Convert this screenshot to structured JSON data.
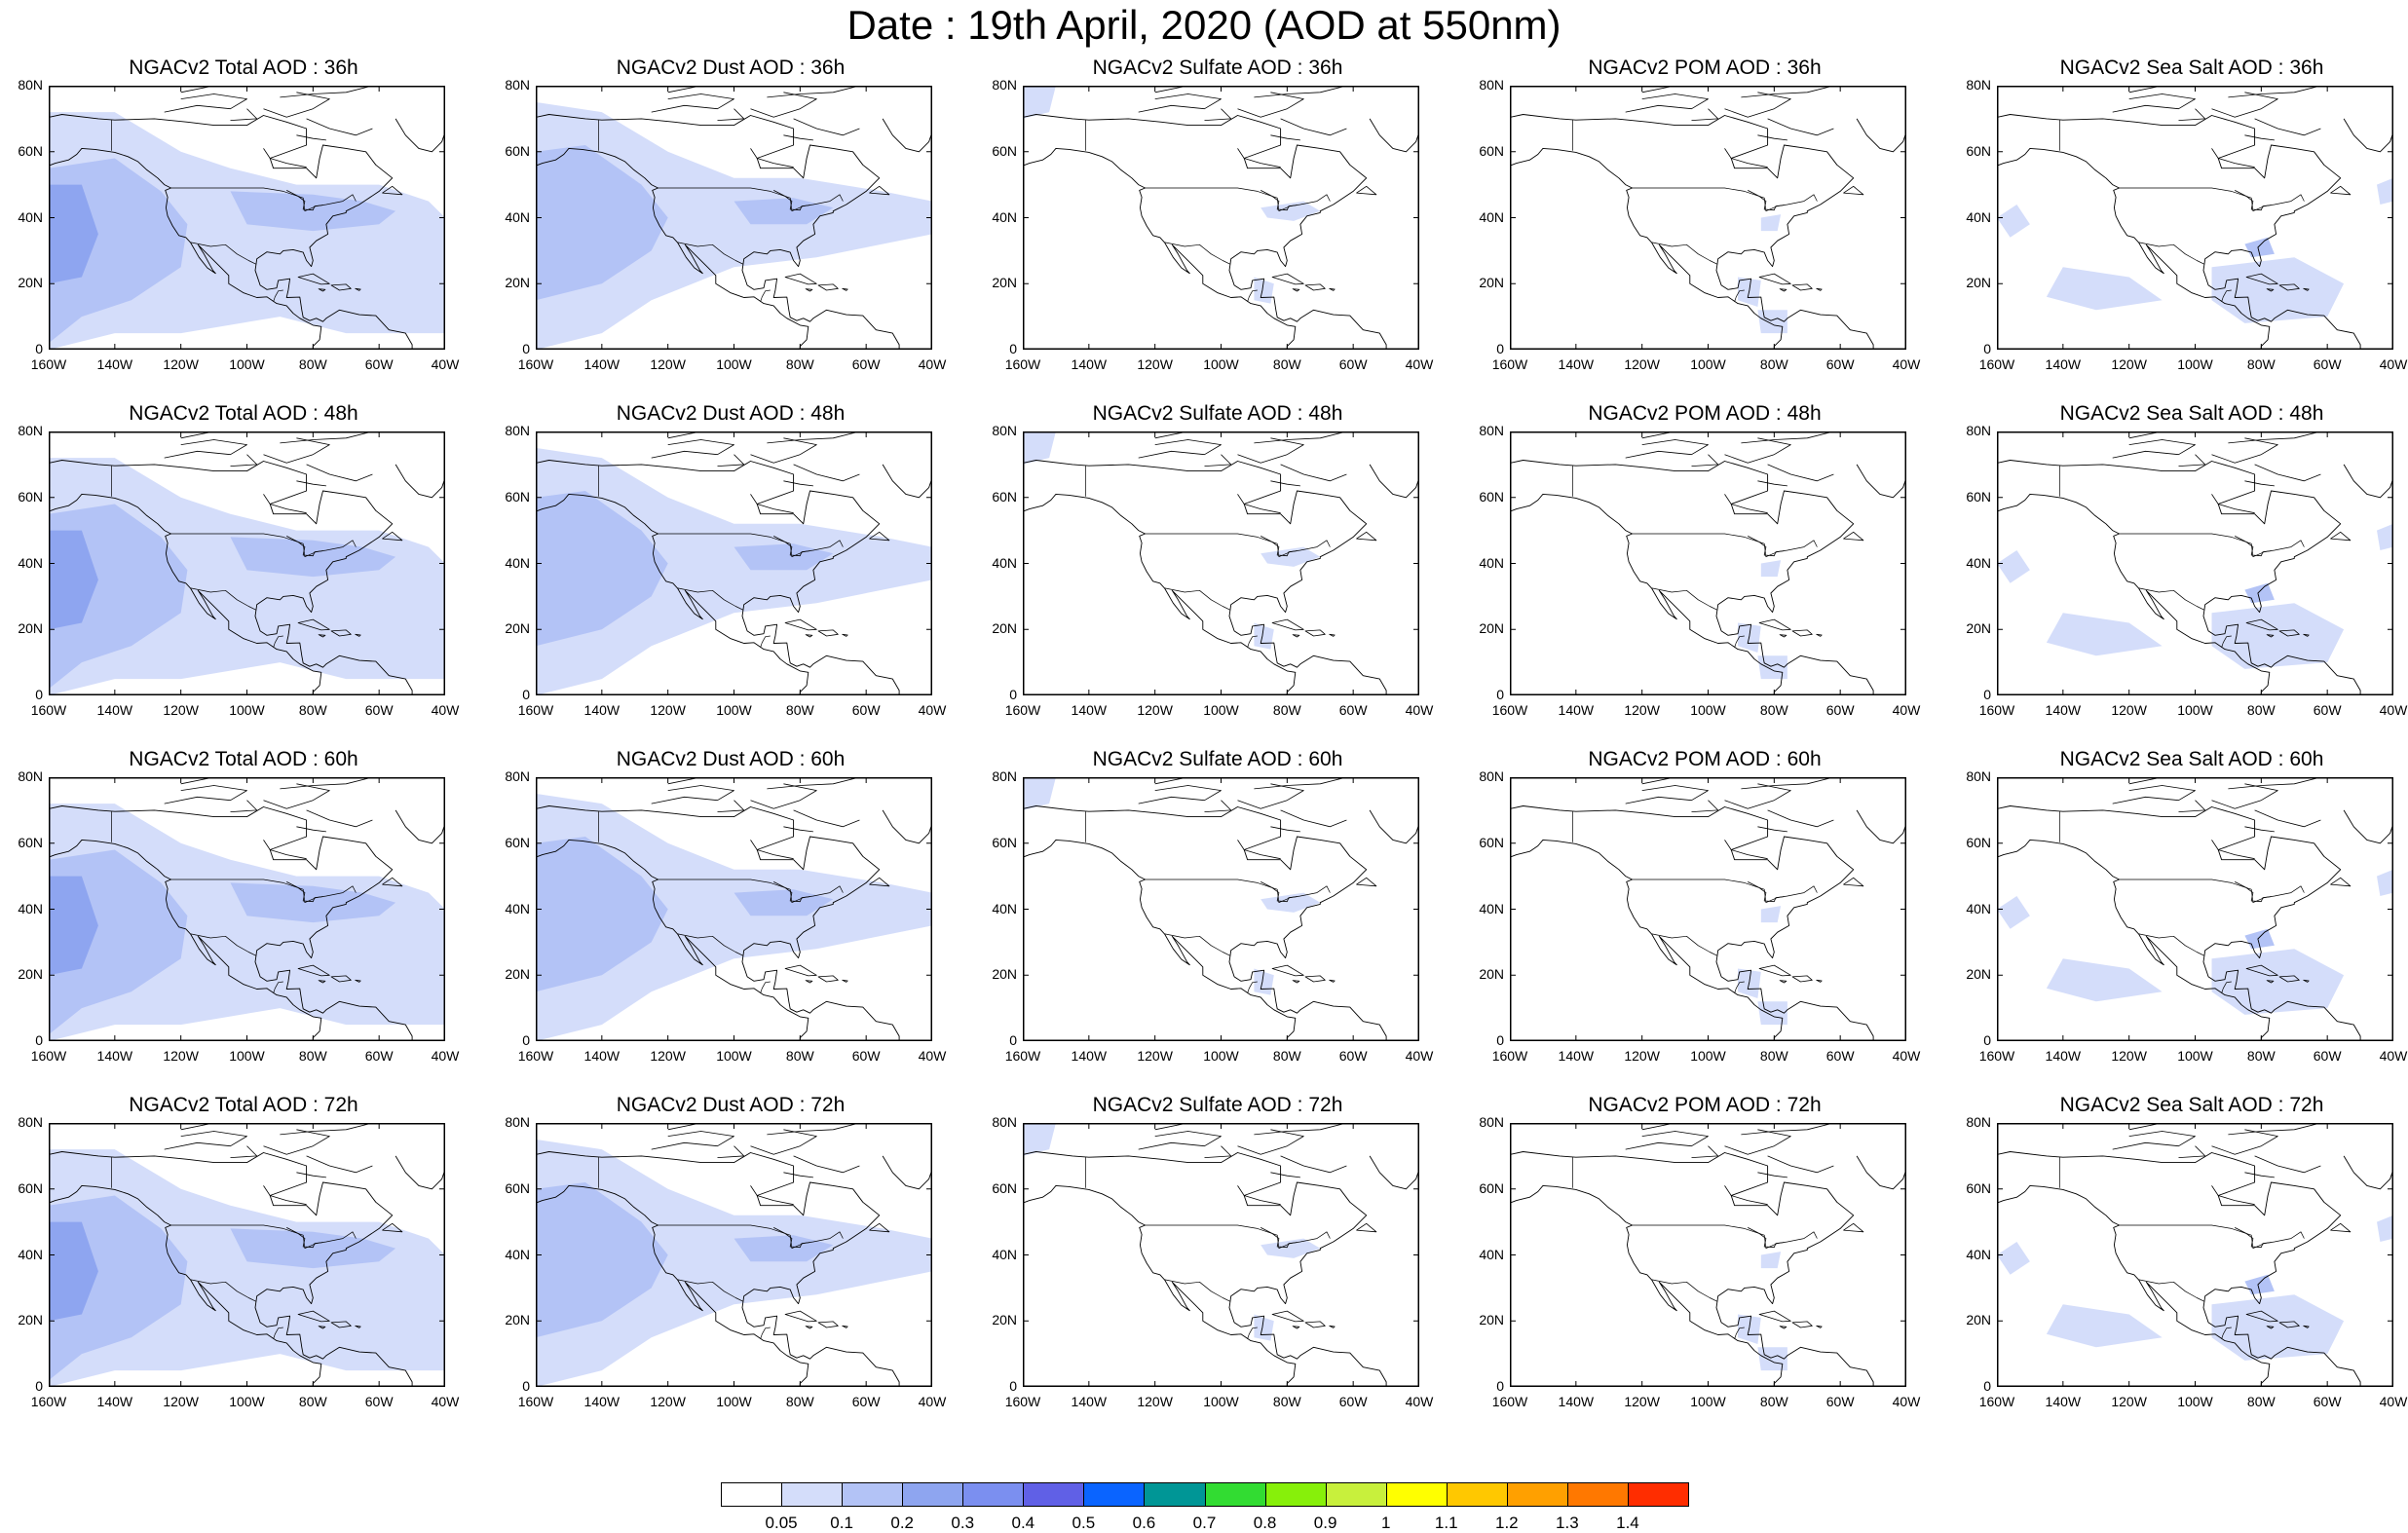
{
  "title": "Date : 19th April, 2020 (AOD at 550nm)",
  "lat_labels": [
    "80N",
    "60N",
    "40N",
    "20N",
    "0"
  ],
  "lon_labels": [
    "160W",
    "140W",
    "120W",
    "100W",
    "80W",
    "60W",
    "40W"
  ],
  "panels": [
    {
      "title": "NGACv2 Total AOD : 36h",
      "field": "total",
      "lead": 36
    },
    {
      "title": "NGACv2 Dust AOD : 36h",
      "field": "dust",
      "lead": 36
    },
    {
      "title": "NGACv2 Sulfate AOD : 36h",
      "field": "sulfate",
      "lead": 36
    },
    {
      "title": "NGACv2 POM AOD : 36h",
      "field": "pom",
      "lead": 36
    },
    {
      "title": "NGACv2 Sea Salt AOD : 36h",
      "field": "seasalt",
      "lead": 36
    },
    {
      "title": "NGACv2 Total AOD : 48h",
      "field": "total",
      "lead": 48
    },
    {
      "title": "NGACv2 Dust AOD : 48h",
      "field": "dust",
      "lead": 48
    },
    {
      "title": "NGACv2 Sulfate AOD : 48h",
      "field": "sulfate",
      "lead": 48
    },
    {
      "title": "NGACv2 POM AOD : 48h",
      "field": "pom",
      "lead": 48
    },
    {
      "title": "NGACv2 Sea Salt AOD : 48h",
      "field": "seasalt",
      "lead": 48
    },
    {
      "title": "NGACv2 Total AOD : 60h",
      "field": "total",
      "lead": 60
    },
    {
      "title": "NGACv2 Dust AOD : 60h",
      "field": "dust",
      "lead": 60
    },
    {
      "title": "NGACv2 Sulfate AOD : 60h",
      "field": "sulfate",
      "lead": 60
    },
    {
      "title": "NGACv2 POM AOD : 60h",
      "field": "pom",
      "lead": 60
    },
    {
      "title": "NGACv2 Sea Salt AOD : 60h",
      "field": "seasalt",
      "lead": 60
    },
    {
      "title": "NGACv2 Total AOD : 72h",
      "field": "total",
      "lead": 72
    },
    {
      "title": "NGACv2 Dust AOD : 72h",
      "field": "dust",
      "lead": 72
    },
    {
      "title": "NGACv2 Sulfate AOD : 72h",
      "field": "sulfate",
      "lead": 72
    },
    {
      "title": "NGACv2 POM AOD : 72h",
      "field": "pom",
      "lead": 72
    },
    {
      "title": "NGACv2 Sea Salt  AOD : 72h",
      "field": "seasalt",
      "lead": 72
    }
  ],
  "colorbar": {
    "labels": [
      "0.05",
      "0.1",
      "0.2",
      "0.3",
      "0.4",
      "0.5",
      "0.6",
      "0.7",
      "0.8",
      "0.9",
      "1",
      "1.1",
      "1.2",
      "1.3",
      "1.4"
    ],
    "colors": [
      "#ffffff",
      "#d4ddfa",
      "#b3c3f6",
      "#8ea5f0",
      "#7b8ff0",
      "#6060e6",
      "#0a64ff",
      "#009696",
      "#32dc32",
      "#87f00a",
      "#c8f03c",
      "#ffff00",
      "#ffc800",
      "#ffa000",
      "#ff7800",
      "#ff2d00"
    ]
  },
  "colors": {
    "land_outline": "#000000",
    "light_aod": "#d4ddfa",
    "mid_aod": "#b3c3f6",
    "high_aod": "#8ea5f0"
  }
}
